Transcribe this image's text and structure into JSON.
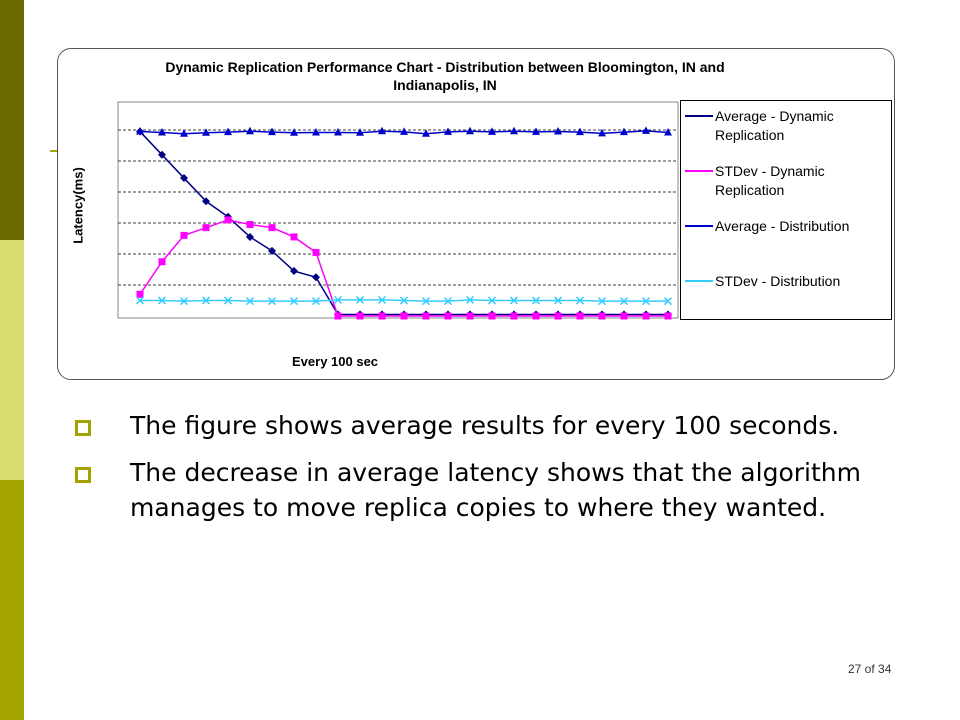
{
  "slide": {
    "bullets": [
      "The figure shows average results for every 100 seconds.",
      "The decrease in average latency shows that the algorithm manages to move replica copies to where they wanted."
    ],
    "page_number": "27 of 34",
    "colors": {
      "dark_band": "#6b6b00",
      "light_band": "#d8db6e",
      "mid_band": "#a3a300",
      "bullet": "#a3a300"
    }
  },
  "chart_data": {
    "type": "line",
    "title": "Dynamic Replication Performance Chart - Distribution between Bloomington, IN and Indianapolis, IN",
    "xlabel": "Every 100 sec",
    "ylabel": "Latency(ms)",
    "x": [
      1,
      2,
      3,
      4,
      5,
      6,
      7,
      8,
      9,
      10,
      11,
      12,
      13,
      14,
      15,
      16,
      17,
      18,
      19,
      20,
      21,
      22,
      23,
      24,
      25
    ],
    "ylim": [
      0,
      6
    ],
    "grid": true,
    "legend_position": "right",
    "series": [
      {
        "name": "Average - Dynamic Replication",
        "color": "#000080",
        "marker": "diamond",
        "values": [
          5.95,
          5.2,
          4.45,
          3.7,
          3.2,
          2.55,
          2.1,
          1.45,
          1.25,
          0.05,
          0.05,
          0.05,
          0.05,
          0.05,
          0.05,
          0.05,
          0.05,
          0.05,
          0.05,
          0.05,
          0.05,
          0.05,
          0.05,
          0.05,
          0.05
        ]
      },
      {
        "name": "STDev - Dynamic Replication",
        "color": "#ff00ff",
        "marker": "square",
        "values": [
          0.7,
          1.75,
          2.6,
          2.85,
          3.1,
          2.95,
          2.85,
          2.55,
          2.05,
          0.0,
          0.0,
          0.0,
          0.0,
          0.0,
          0.0,
          0.0,
          0.0,
          0.0,
          0.0,
          0.0,
          0.0,
          0.0,
          0.0,
          0.0,
          0.0
        ]
      },
      {
        "name": "Average  - Distribution",
        "color": "#0000cc",
        "marker": "triangle",
        "values": [
          5.95,
          5.92,
          5.88,
          5.91,
          5.93,
          5.96,
          5.93,
          5.91,
          5.92,
          5.92,
          5.91,
          5.96,
          5.94,
          5.88,
          5.94,
          5.96,
          5.94,
          5.96,
          5.94,
          5.95,
          5.93,
          5.89,
          5.93,
          5.97,
          5.92
        ]
      },
      {
        "name": "STDev - Distribution",
        "color": "#33ccff",
        "marker": "x",
        "values": [
          0.5,
          0.5,
          0.48,
          0.5,
          0.5,
          0.48,
          0.48,
          0.48,
          0.48,
          0.52,
          0.52,
          0.52,
          0.5,
          0.48,
          0.48,
          0.52,
          0.5,
          0.5,
          0.5,
          0.5,
          0.5,
          0.48,
          0.48,
          0.48,
          0.48
        ]
      }
    ]
  }
}
